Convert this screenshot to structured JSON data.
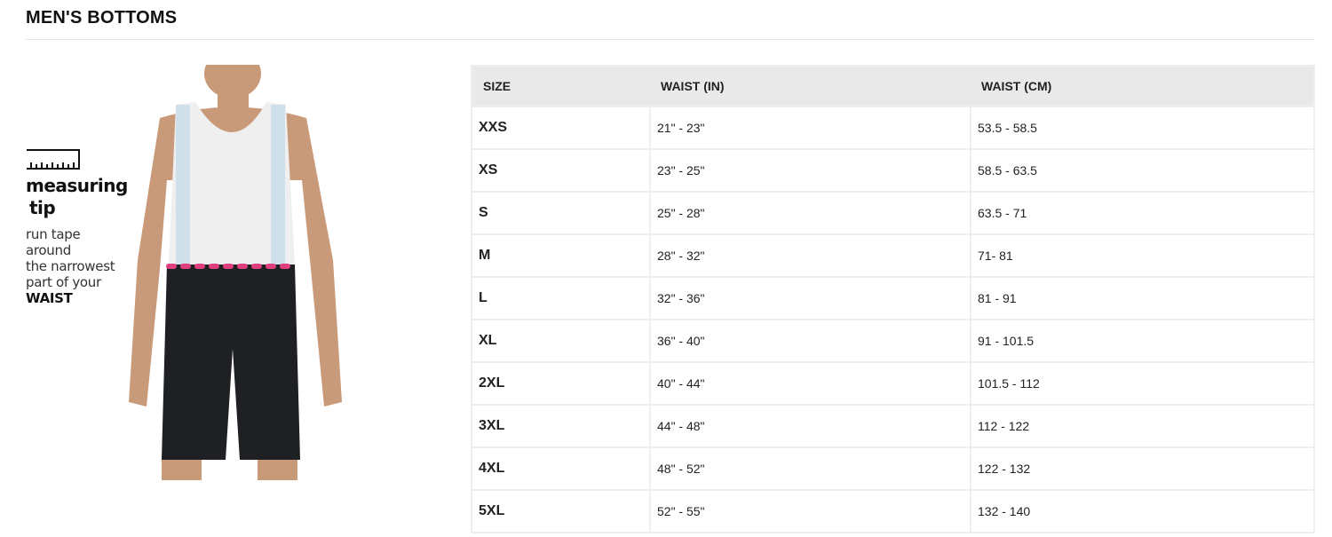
{
  "title": "MEN'S BOTTOMS",
  "tip": {
    "heading1": "measuring",
    "heading2": "tip",
    "line1": "run tape",
    "line2": "around",
    "line3": "the narrowest",
    "line4": "part of your",
    "emphasis": "WAIST",
    "icon": "ruler-icon"
  },
  "table": {
    "headers": [
      "SIZE",
      "WAIST (IN)",
      "WAIST (CM)"
    ],
    "rows": [
      [
        "XXS",
        "21\" - 23\"",
        "53.5 - 58.5"
      ],
      [
        "XS",
        "23\" - 25\"",
        "58.5 - 63.5"
      ],
      [
        "S",
        "25\" - 28\"",
        "63.5 - 71"
      ],
      [
        "M",
        "28\" - 32\"",
        "71- 81"
      ],
      [
        "L",
        "32\" - 36\"",
        "81 - 91"
      ],
      [
        "XL",
        "36\" - 40\"",
        "91 - 101.5"
      ],
      [
        "2XL",
        "40\" - 44\"",
        "101.5 - 112"
      ],
      [
        "3XL",
        "44\" - 48\"",
        "112 - 122"
      ],
      [
        "4XL",
        "48\" - 52\"",
        "122 - 132"
      ],
      [
        "5XL",
        "52\" - 55\"",
        "132 - 140"
      ]
    ]
  },
  "colors": {
    "measure_line": "#e0407f",
    "header_bg": "#e9e9e9"
  }
}
